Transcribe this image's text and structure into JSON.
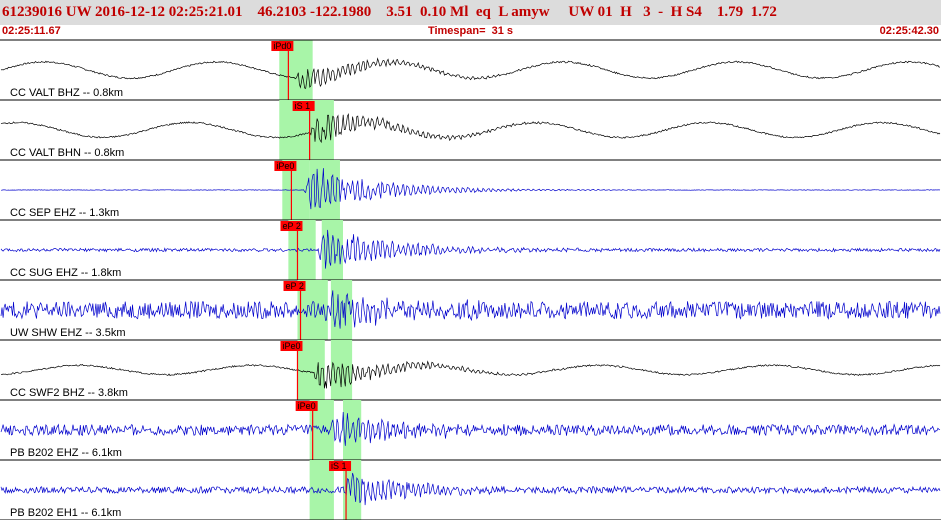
{
  "header": {
    "title": "61239016 UW 2016-12-12 02:25:21.01    46.2103 -122.1980    3.51  0.10 Ml  eq  L amyw     UW 01  H   3  -  H S4    1.79  1.72",
    "start_time": "02:25:11.67",
    "end_time": "02:25:42.30",
    "timespan": "Timespan=  31 s"
  },
  "colors": {
    "title": "#c00000",
    "header_bg": "#dcdcdc",
    "pick_window": "#a8f5a8",
    "pick": "#ff0000",
    "trace_black": "#000000",
    "trace_blue": "#0000cc"
  },
  "chart_data": {
    "type": "line",
    "x_unit": "s",
    "xlim": [
      0,
      31
    ],
    "channels": [
      {
        "label": "CC VALT BHZ -- 0.8km",
        "color": "black",
        "amp": 0.45,
        "noise": 0.03,
        "onset": 9.7,
        "lowfreq": 0.6,
        "pick": "iPd0",
        "pick_t": 9.5,
        "windows": [
          [
            9.2,
            10.3
          ]
        ]
      },
      {
        "label": "CC VALT BHN -- 0.8km",
        "color": "black",
        "amp": 0.55,
        "noise": 0.03,
        "onset": 10.2,
        "lowfreq": 0.55,
        "pick": "iS 1",
        "pick_t": 10.2,
        "windows": [
          [
            9.2,
            10.2
          ],
          [
            10.2,
            11.0
          ]
        ]
      },
      {
        "label": "CC SEP EHZ -- 1.3km",
        "color": "blue",
        "amp": 0.9,
        "noise": 0.01,
        "onset": 10.0,
        "lowfreq": 0,
        "pick": "iPe0",
        "pick_t": 9.6,
        "windows": [
          [
            9.3,
            10.2
          ],
          [
            10.2,
            11.2
          ]
        ]
      },
      {
        "label": "CC SUG EHZ -- 1.8km",
        "color": "blue",
        "amp": 0.8,
        "noise": 0.06,
        "onset": 10.4,
        "lowfreq": 0,
        "pick": "eP 2",
        "pick_t": 9.8,
        "windows": [
          [
            9.5,
            10.4
          ],
          [
            10.6,
            11.3
          ]
        ]
      },
      {
        "label": "UW SHW EHZ -- 3.5km",
        "color": "blue",
        "amp": 0.6,
        "noise": 0.32,
        "onset": 10.6,
        "lowfreq": 0,
        "pick": "eP 2",
        "pick_t": 9.9,
        "windows": [
          [
            9.8,
            10.8
          ],
          [
            10.9,
            11.6
          ]
        ]
      },
      {
        "label": "CC SWF2 BHZ -- 3.8km",
        "color": "black",
        "amp": 0.6,
        "noise": 0.03,
        "onset": 10.3,
        "lowfreq": 0.35,
        "pick": "iPe0",
        "pick_t": 9.8,
        "windows": [
          [
            9.8,
            10.7
          ],
          [
            10.9,
            11.6
          ]
        ]
      },
      {
        "label": "PB B202 EHZ -- 6.1km",
        "color": "blue",
        "amp": 0.6,
        "noise": 0.2,
        "onset": 10.8,
        "lowfreq": 0,
        "pick": "iPe0",
        "pick_t": 10.3,
        "windows": [
          [
            10.2,
            11.0
          ],
          [
            11.3,
            11.9
          ]
        ]
      },
      {
        "label": "PB B202 EH1 -- 6.1km",
        "color": "blue",
        "amp": 0.6,
        "noise": 0.12,
        "onset": 11.3,
        "lowfreq": 0,
        "pick": "iS 1",
        "pick_t": 11.4,
        "windows": [
          [
            10.2,
            11.0
          ],
          [
            11.3,
            11.9
          ]
        ]
      }
    ]
  }
}
